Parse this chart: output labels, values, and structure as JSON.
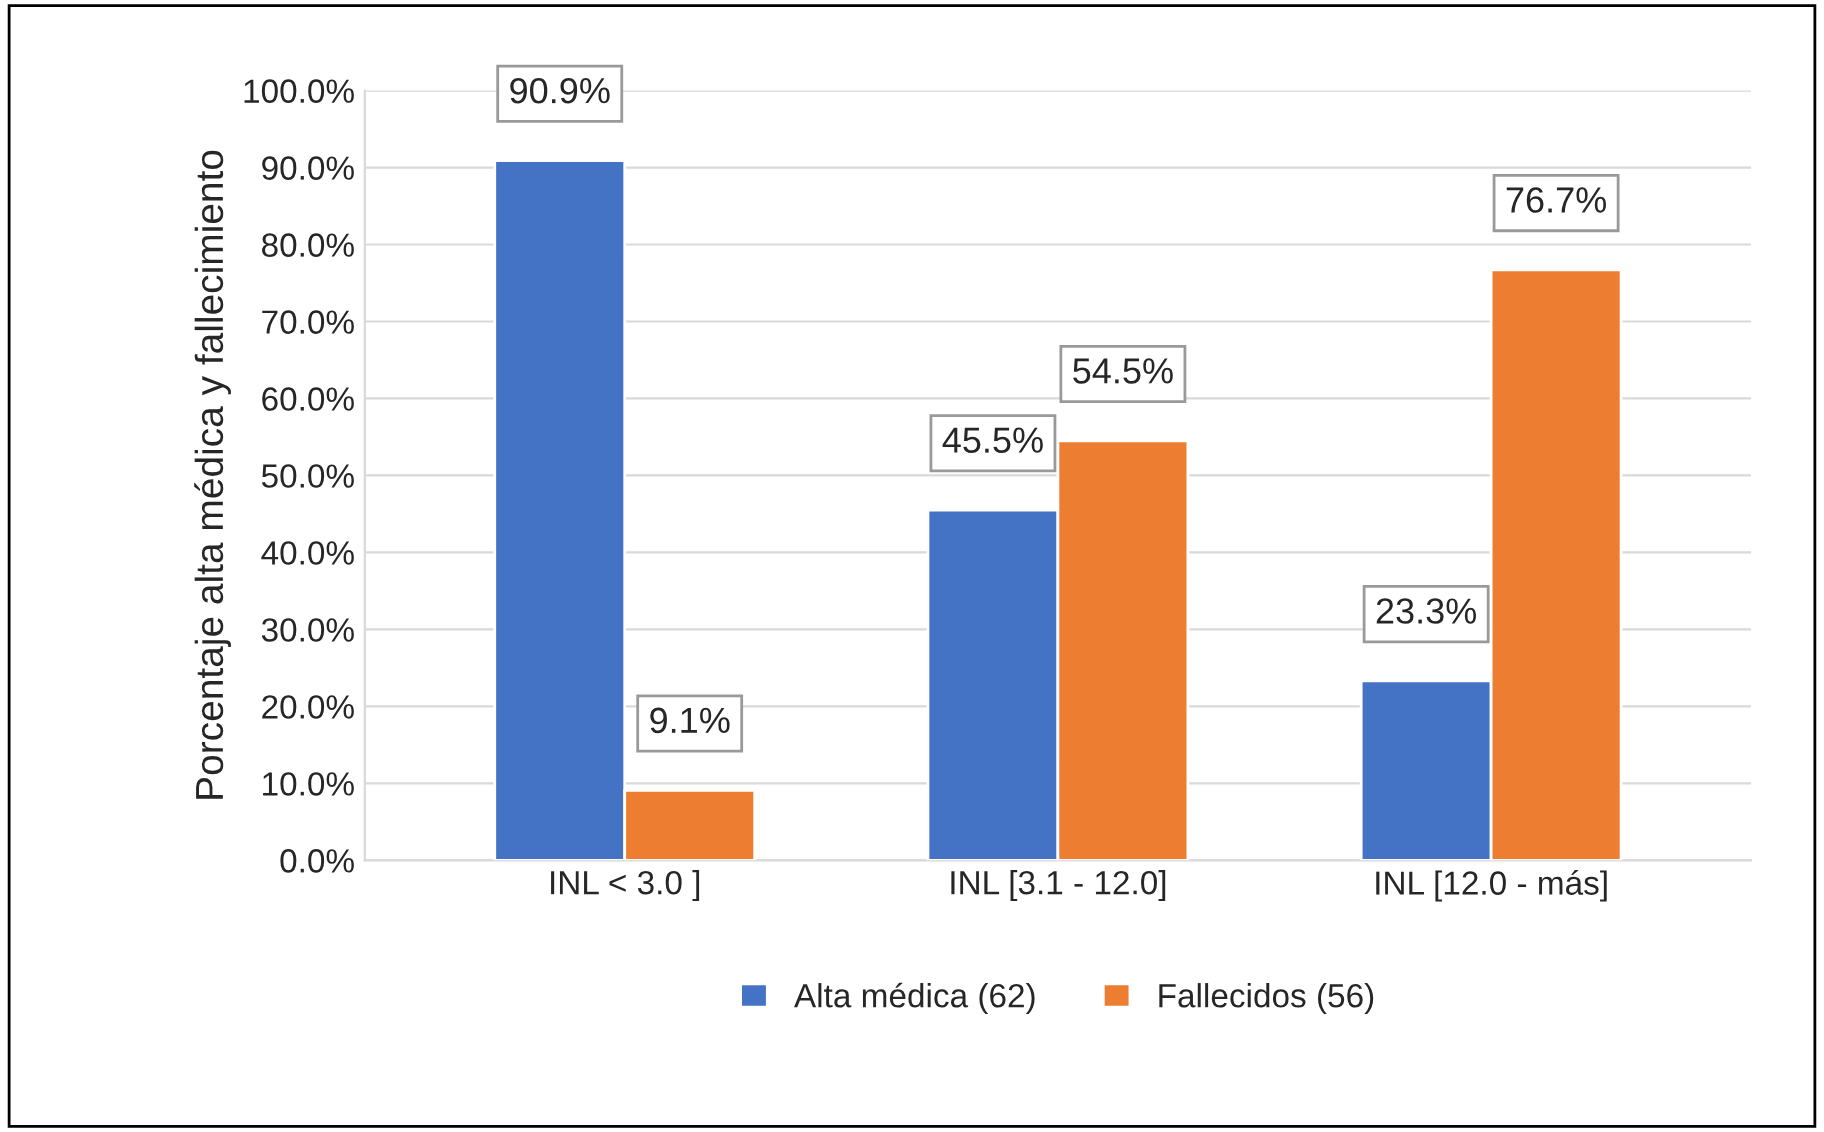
{
  "chart_data": {
    "type": "bar",
    "ylabel": "Porcentaje alta médica y fallecimiento",
    "categories": [
      "INL < 3.0 ]",
      "INL [3.1 - 12.0]",
      "INL [12.0 - más]"
    ],
    "series": [
      {
        "name": "Alta médica (62)",
        "color": "#4472c4",
        "values": [
          90.9,
          45.5,
          23.3
        ],
        "value_labels": [
          "90.9%",
          "45.5%",
          "23.3%"
        ]
      },
      {
        "name": "Fallecidos (56)",
        "color": "#ed7d31",
        "values": [
          9.1,
          54.5,
          76.7
        ],
        "value_labels": [
          "9.1%",
          "54.5%",
          "76.7%"
        ]
      }
    ],
    "ylim": [
      0,
      100
    ],
    "yticks": [
      {
        "value": 0,
        "label": "0.0%"
      },
      {
        "value": 10,
        "label": "10.0%"
      },
      {
        "value": 20,
        "label": "20.0%"
      },
      {
        "value": 30,
        "label": "30.0%"
      },
      {
        "value": 40,
        "label": "40.0%"
      },
      {
        "value": 50,
        "label": "50.0%"
      },
      {
        "value": 60,
        "label": "60.0%"
      },
      {
        "value": 70,
        "label": "70.0%"
      },
      {
        "value": 80,
        "label": "80.0%"
      },
      {
        "value": 90,
        "label": "90.0%"
      },
      {
        "value": 100,
        "label": "100.0%"
      }
    ],
    "grid": "y",
    "legend": "bottom"
  }
}
